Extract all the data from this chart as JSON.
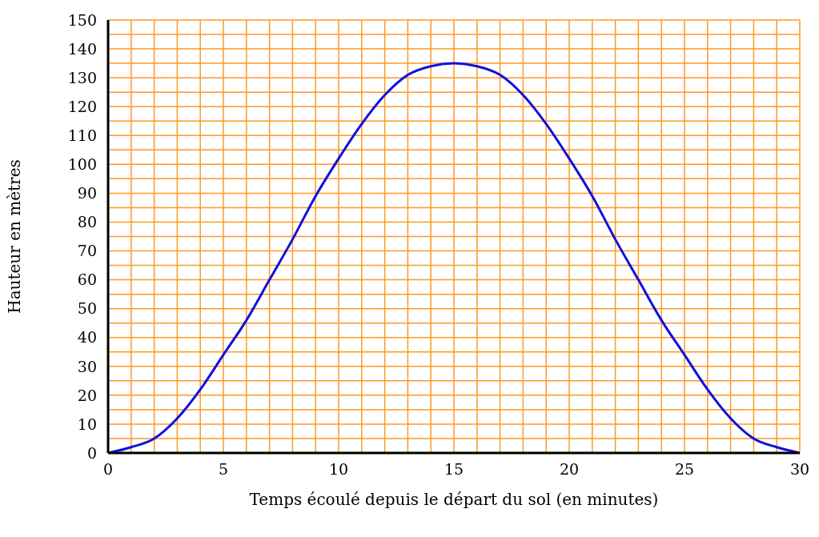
{
  "chart_data": {
    "type": "line",
    "xlabel": "Temps écoulé depuis le départ du sol (en minutes)",
    "ylabel": "Hauteur en mètres",
    "x": [
      0,
      1,
      2,
      3,
      4,
      5,
      6,
      7,
      8,
      9,
      10,
      11,
      12,
      13,
      14,
      15,
      16,
      17,
      18,
      19,
      20,
      21,
      22,
      23,
      24,
      25,
      26,
      27,
      28,
      29,
      30
    ],
    "series": [
      {
        "color": "#1010e0",
        "values": [
          0,
          2,
          5,
          12,
          22,
          34,
          46,
          60,
          74,
          89,
          102,
          114,
          124,
          131,
          134,
          135,
          134,
          131,
          124,
          114,
          102,
          89,
          74,
          60,
          46,
          34,
          22,
          12,
          5,
          2,
          0
        ]
      }
    ],
    "xlim": [
      0,
      30
    ],
    "xticks": [
      0,
      {
        "value": 1,
        "label": null
      },
      {
        "value": 2,
        "label": null
      },
      {
        "value": 3,
        "label": null
      },
      {
        "value": 4,
        "label": null
      },
      5,
      {
        "value": 6,
        "label": null
      },
      {
        "value": 7,
        "label": null
      },
      {
        "value": 8,
        "label": null
      },
      {
        "value": 9,
        "label": null
      },
      10,
      {
        "value": 11,
        "label": null
      },
      {
        "value": 12,
        "label": null
      },
      {
        "value": 13,
        "label": null
      },
      {
        "value": 14,
        "label": null
      },
      15,
      {
        "value": 16,
        "label": null
      },
      {
        "value": 17,
        "label": null
      },
      {
        "value": 18,
        "label": null
      },
      {
        "value": 19,
        "label": null
      },
      20,
      {
        "value": 21,
        "label": null
      },
      {
        "value": 22,
        "label": null
      },
      {
        "value": 23,
        "label": null
      },
      {
        "value": 24,
        "label": null
      },
      25,
      {
        "value": 26,
        "label": null
      },
      {
        "value": 27,
        "label": null
      },
      {
        "value": 28,
        "label": null
      },
      {
        "value": 29,
        "label": null
      },
      30
    ],
    "ylim": [
      0,
      150
    ],
    "yticks": [
      0,
      {
        "value": 5,
        "label": null
      },
      10,
      {
        "value": 15,
        "label": null
      },
      20,
      {
        "value": 25,
        "label": null
      },
      30,
      {
        "value": 35,
        "label": null
      },
      40,
      {
        "value": 45,
        "label": null
      },
      50,
      {
        "value": 55,
        "label": null
      },
      60,
      {
        "value": 65,
        "label": null
      },
      70,
      {
        "value": 75,
        "label": null
      },
      80,
      {
        "value": 85,
        "label": null
      },
      90,
      {
        "value": 95,
        "label": null
      },
      100,
      {
        "value": 105,
        "label": null
      },
      110,
      {
        "value": 115,
        "label": null
      },
      120,
      {
        "value": 125,
        "label": null
      },
      130,
      {
        "value": 135,
        "label": null
      },
      140,
      {
        "value": 145,
        "label": null
      },
      150
    ],
    "grid": true,
    "marker": "none",
    "line_style": "solid"
  }
}
